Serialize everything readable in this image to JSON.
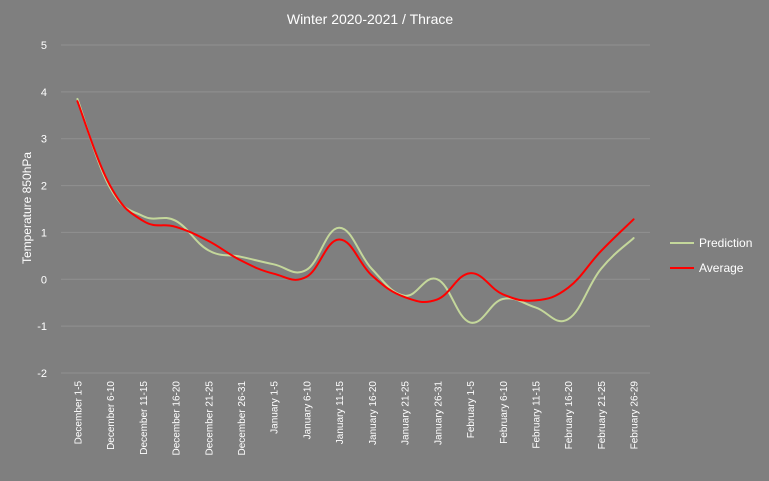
{
  "chart_data": {
    "type": "line",
    "title": "Winter 2020-2021 / Thrace",
    "xlabel": "",
    "ylabel": "Temperature  850hPa",
    "ylim": [
      -2,
      5
    ],
    "yticks": [
      -2,
      -1,
      0,
      1,
      2,
      3,
      4,
      5
    ],
    "grid": true,
    "legend_position": "right",
    "categories": [
      "December 1-5",
      "December 6-10",
      "December 11-15",
      "December 16-20",
      "December 21-25",
      "December 26-31",
      "January 1-5",
      "January 6-10",
      "January 11-15",
      "January 16-20",
      "January 21-25",
      "January 26-31",
      "February 1-5",
      "February 6-10",
      "February 11-15",
      "February 16-20",
      "February 21-25",
      "February 26-29"
    ],
    "series": [
      {
        "name": "Prediction",
        "color": "#c4d79b",
        "values": [
          3.85,
          1.95,
          1.35,
          1.25,
          0.62,
          0.48,
          0.32,
          0.2,
          1.1,
          0.22,
          -0.35,
          0.0,
          -0.92,
          -0.42,
          -0.6,
          -0.85,
          0.22,
          0.88
        ]
      },
      {
        "name": "Average",
        "color": "#ff0000",
        "values": [
          3.8,
          2.0,
          1.25,
          1.12,
          0.82,
          0.4,
          0.12,
          0.05,
          0.85,
          0.08,
          -0.38,
          -0.43,
          0.13,
          -0.32,
          -0.45,
          -0.18,
          0.6,
          1.28
        ]
      }
    ]
  }
}
